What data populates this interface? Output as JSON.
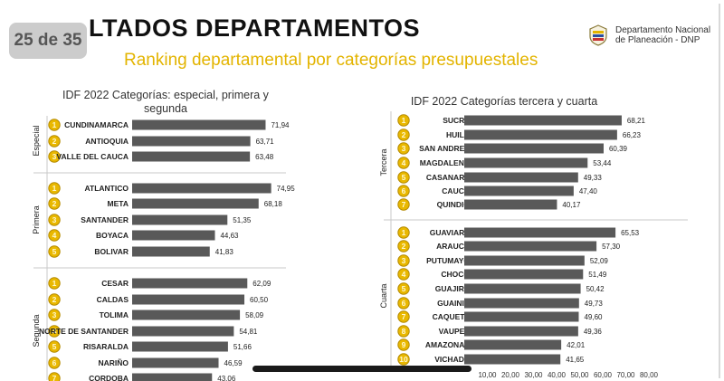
{
  "page": {
    "counter": "25 de 35",
    "title": "LTADOS DEPARTAMENTOS",
    "subtitle": "Ranking departamental por categorías presupuestales",
    "logo": {
      "line1": "Departamento Nacional",
      "line2": "de Planeación - DNP"
    }
  },
  "colors": {
    "bar": "#595959",
    "medal": "#e9b800",
    "medal_edge": "#b48a00",
    "title_accent": "#e3b400"
  },
  "chart_data": [
    {
      "type": "bar",
      "orientation": "horizontal",
      "title_line1": "IDF 2022 Categorías: especial, primera y",
      "title_line2": "segunda",
      "groups": [
        {
          "name": "Especial",
          "ranks": [
            "1",
            "2",
            "3"
          ],
          "categories": [
            "CUNDINAMARCA",
            "ANTIOQUIA",
            "VALLE DEL CAUCA"
          ],
          "values": [
            71.94,
            63.71,
            63.48
          ],
          "labels": [
            "71,94",
            "63,71",
            "63,48"
          ]
        },
        {
          "name": "Primera",
          "ranks": [
            "1",
            "2",
            "3",
            "4",
            "5"
          ],
          "categories": [
            "ATLANTICO",
            "META",
            "SANTANDER",
            "BOYACA",
            "BOLIVAR"
          ],
          "values": [
            74.95,
            68.18,
            51.35,
            44.63,
            41.83
          ],
          "labels": [
            "74,95",
            "68,18",
            "51,35",
            "44,63",
            "41,83"
          ]
        },
        {
          "name": "Segunda",
          "ranks": [
            "1",
            "2",
            "3",
            "4",
            "5",
            "6",
            "7"
          ],
          "categories": [
            "CESAR",
            "CALDAS",
            "TOLIMA",
            "NORTE DE SANTANDER",
            "RISARALDA",
            "NARIÑO",
            "CORDOBA"
          ],
          "values": [
            62.09,
            60.5,
            58.09,
            54.81,
            51.66,
            46.59,
            43.06
          ],
          "labels": [
            "62,09",
            "60,50",
            "58,09",
            "54,81",
            "51,66",
            "46,59",
            "43,06"
          ]
        }
      ]
    },
    {
      "type": "bar",
      "orientation": "horizontal",
      "title_line1": "IDF 2022 Categorías tercera  y cuarta",
      "xlim": [
        0,
        80
      ],
      "ticks": [
        "10,00",
        "20,00",
        "30,00",
        "40,00",
        "50,00",
        "60,00",
        "70,00",
        "80,00"
      ],
      "tick_values": [
        10,
        20,
        30,
        40,
        50,
        60,
        70,
        80
      ],
      "groups": [
        {
          "name": "Tercera",
          "ranks": [
            "1",
            "2",
            "3",
            "4",
            "5",
            "6",
            "7"
          ],
          "categories": [
            "SUCRE",
            "HUILA",
            "SAN ANDRES",
            "MAGDALENA",
            "CASANARE",
            "CAUCA",
            "QUINDIO"
          ],
          "values": [
            68.21,
            66.23,
            60.39,
            53.44,
            49.33,
            47.4,
            40.17
          ],
          "labels": [
            "68,21",
            "66,23",
            "60,39",
            "53,44",
            "49,33",
            "47,40",
            "40,17"
          ]
        },
        {
          "name": "Cuarta",
          "ranks": [
            "1",
            "2",
            "3",
            "4",
            "5",
            "6",
            "7",
            "8",
            "9",
            "10"
          ],
          "categories": [
            "GUAVIARE",
            "ARAUCA",
            "PUTUMAYO",
            "CHOCO",
            "GUAJIRA",
            "GUAINIA",
            "CAQUETA",
            "VAUPES",
            "AMAZONAS",
            "VICHADA"
          ],
          "values": [
            65.53,
            57.3,
            52.09,
            51.49,
            50.42,
            49.73,
            49.6,
            49.36,
            42.01,
            41.65
          ],
          "labels": [
            "65,53",
            "57,30",
            "52,09",
            "51,49",
            "50,42",
            "49,73",
            "49,60",
            "49,36",
            "42,01",
            "41,65"
          ]
        }
      ]
    }
  ]
}
